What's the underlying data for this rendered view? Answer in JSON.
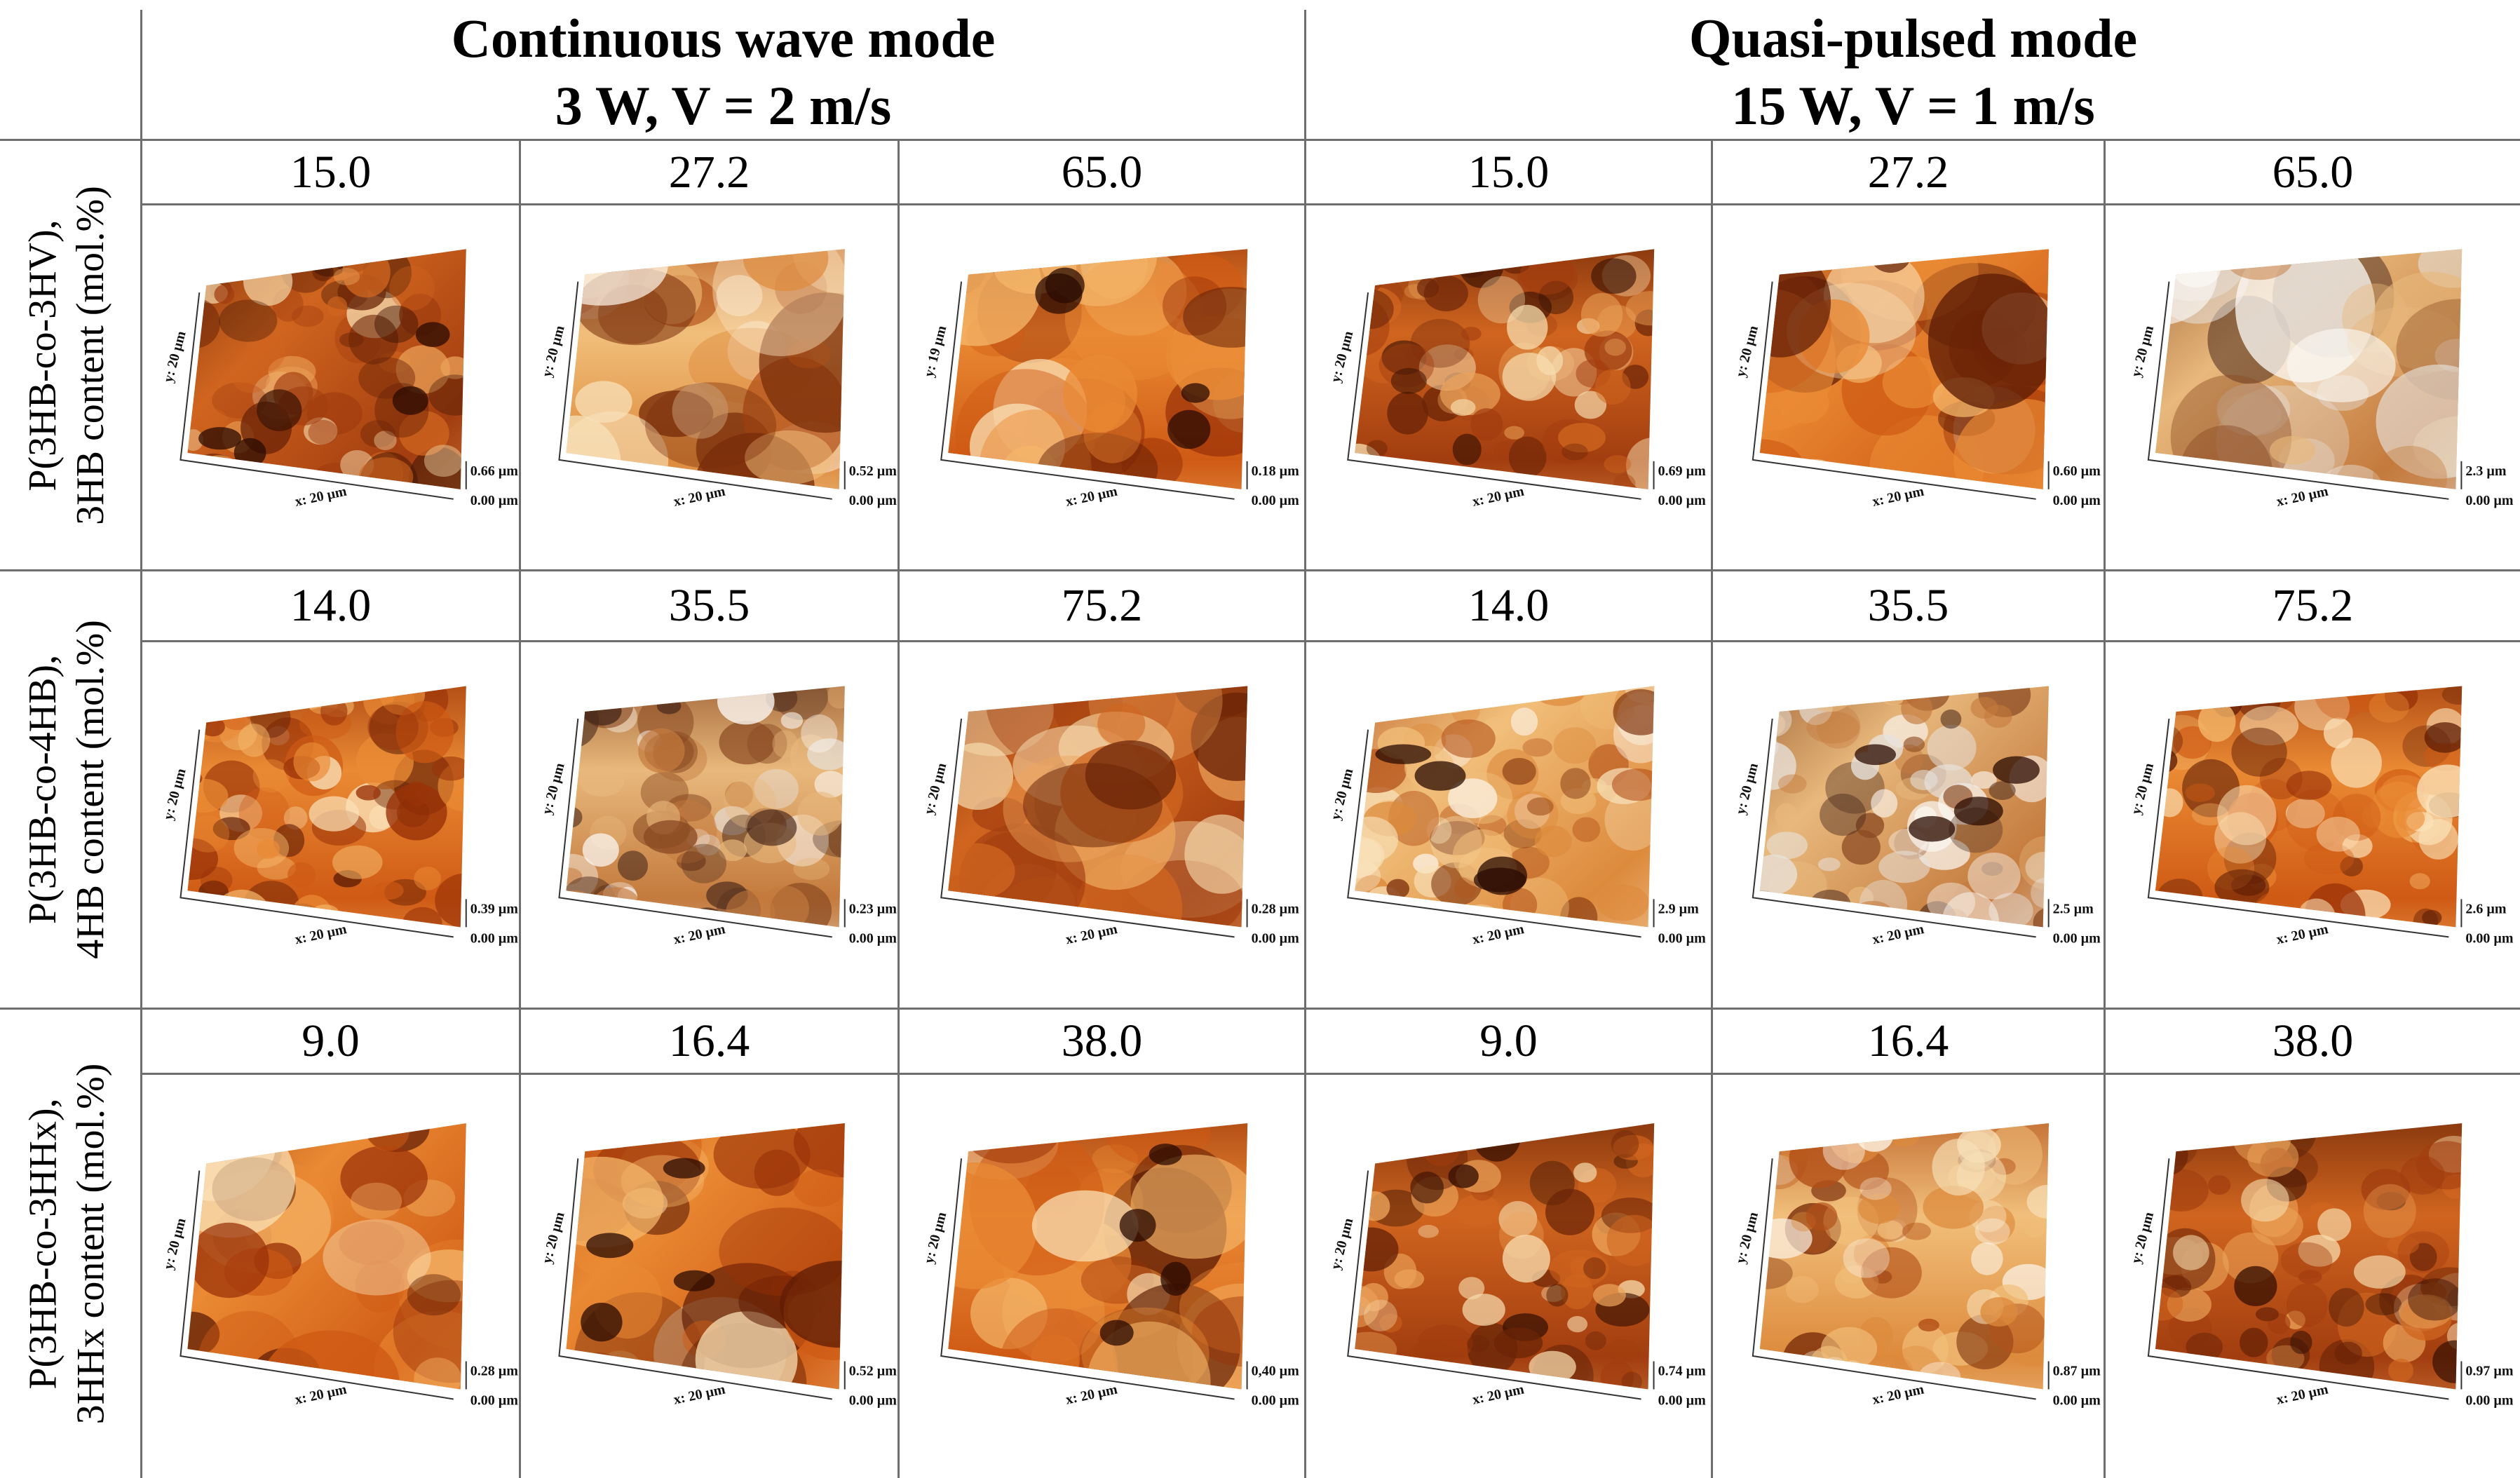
{
  "modes": [
    {
      "title_line1": "Continuous wave mode",
      "title_line2": "3 W, V = 2 m/s"
    },
    {
      "title_line1": "Quasi-pulsed mode",
      "title_line2": "15 W, V = 1 m/s"
    }
  ],
  "rows": [
    {
      "label_line1": "P(3HB-co-3HV),",
      "label_line2": "3HB content (mol.%)",
      "values": [
        "15.0",
        "27.2",
        "65.0",
        "15.0",
        "27.2",
        "65.0"
      ],
      "panels": [
        {
          "x": "x: 20 µm",
          "y": "y: 20 µm",
          "zmax": "0.66 µm",
          "zmin": "0.00 µm",
          "style": "pitted"
        },
        {
          "x": "x: 20 µm",
          "y": "y: 20 µm",
          "zmax": "0.52 µm",
          "zmin": "0.00 µm",
          "style": "smooth-light"
        },
        {
          "x": "x: 20 µm",
          "y": "y: 19 µm",
          "zmax": "0.18 µm",
          "zmin": "0.00 µm",
          "style": "craters"
        },
        {
          "x": "x: 20 µm",
          "y": "y: 20 µm",
          "zmax": "0.69 µm",
          "zmin": "0.00 µm",
          "style": "rough-dark"
        },
        {
          "x": "x: 20 µm",
          "y": "y: 20 µm",
          "zmax": "0.60 µm",
          "zmin": "0.00 µm",
          "style": "smooth-orange"
        },
        {
          "x": "x: 20 µm",
          "y": "y: 20 µm",
          "zmax": "2.3 µm",
          "zmin": "0.00 µm",
          "style": "smooth-bright"
        }
      ]
    },
    {
      "label_line1": "P(3HB-co-4HB),",
      "label_line2": "4HB content (mol.%)",
      "values": [
        "14.0",
        "35.5",
        "75.2",
        "14.0",
        "35.5",
        "75.2"
      ],
      "panels": [
        {
          "x": "x: 20 µm",
          "y": "y: 20 µm",
          "zmax": "0.39 µm",
          "zmin": "0.00 µm",
          "style": "granular"
        },
        {
          "x": "x: 20 µm",
          "y": "y: 20 µm",
          "zmax": "0.23 µm",
          "zmin": "0.00 µm",
          "style": "granular-light"
        },
        {
          "x": "x: 20 µm",
          "y": "y: 20 µm",
          "zmax": "0.28 µm",
          "zmin": "0.00 µm",
          "style": "dark-fibrous"
        },
        {
          "x": "x: 20 µm",
          "y": "y: 20 µm",
          "zmax": "2.9 µm",
          "zmin": "0.00 µm",
          "style": "holes-light"
        },
        {
          "x": "x: 20 µm",
          "y": "y: 20 µm",
          "zmax": "2.5 µm",
          "zmin": "0.00 µm",
          "style": "holes-grey"
        },
        {
          "x": "x: 20 µm",
          "y": "y: 20 µm",
          "zmax": "2.6 µm",
          "zmin": "0.00 µm",
          "style": "bumpy-orange"
        }
      ]
    },
    {
      "label_line1": "P(3HB-co-3HHx),",
      "label_line2": "3HHx content (mol.%)",
      "values": [
        "9.0",
        "16.4",
        "38.0",
        "9.0",
        "16.4",
        "38.0"
      ],
      "panels": [
        {
          "x": "x: 20 µm",
          "y": "y: 20 µm",
          "zmax": "0.28 µm",
          "zmin": "0.00 µm",
          "style": "streaked"
        },
        {
          "x": "x: 20 µm",
          "y": "y: 20 µm",
          "zmax": "0.52 µm",
          "zmin": "0.00 µm",
          "style": "ridge"
        },
        {
          "x": "x: 20 µm",
          "y": "y: 20 µm",
          "zmax": "0,40 µm",
          "zmin": "0.00 µm",
          "style": "valley"
        },
        {
          "x": "x: 20 µm",
          "y": "y: 20 µm",
          "zmax": "0.74 µm",
          "zmin": "0.00 µm",
          "style": "rough-dark"
        },
        {
          "x": "x: 20 µm",
          "y": "y: 20 µm",
          "zmax": "0.87 µm",
          "zmin": "0.00 µm",
          "style": "bumpy-light"
        },
        {
          "x": "x: 20 µm",
          "y": "y: 20 µm",
          "zmax": "0.97 µm",
          "zmin": "0.00 µm",
          "style": "bumpy-mixed"
        }
      ]
    }
  ],
  "colors": {
    "grid": "#6e6e6e",
    "afm_dark": "#5a1e05",
    "afm_mid": "#c8561a",
    "afm_light": "#f6d9a8",
    "afm_white": "#fbf6ee"
  }
}
